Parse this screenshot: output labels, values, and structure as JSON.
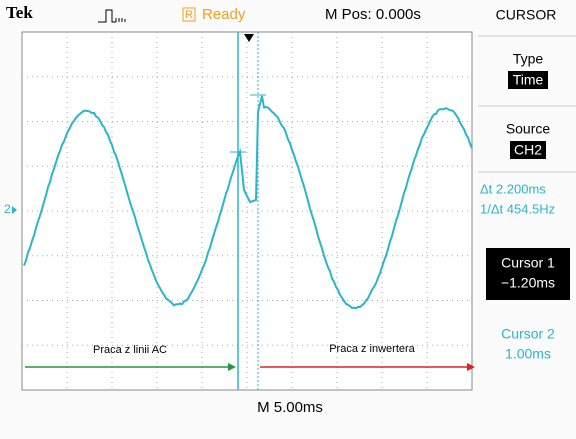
{
  "header": {
    "brand": "Tek",
    "status_mode": "R",
    "status": "Ready",
    "position": "M Pos: 0.000s"
  },
  "menu": {
    "title": "CURSOR",
    "items": [
      {
        "label": "Type",
        "value": "Time"
      },
      {
        "label": "Source",
        "value": "CH2"
      }
    ],
    "delta_time": "Δt 2.200ms",
    "delta_freq": "1/Δt 454.5Hz",
    "cursor1": {
      "label": "Cursor 1",
      "value": "−1.20ms"
    },
    "cursor2": {
      "label": "Cursor 2",
      "value": "1.00ms"
    }
  },
  "screen": {
    "channel_marker": "2",
    "timebase": "M 5.00ms",
    "annotations": [
      "Praca z linii AC",
      "Praca z inwertera"
    ]
  }
}
